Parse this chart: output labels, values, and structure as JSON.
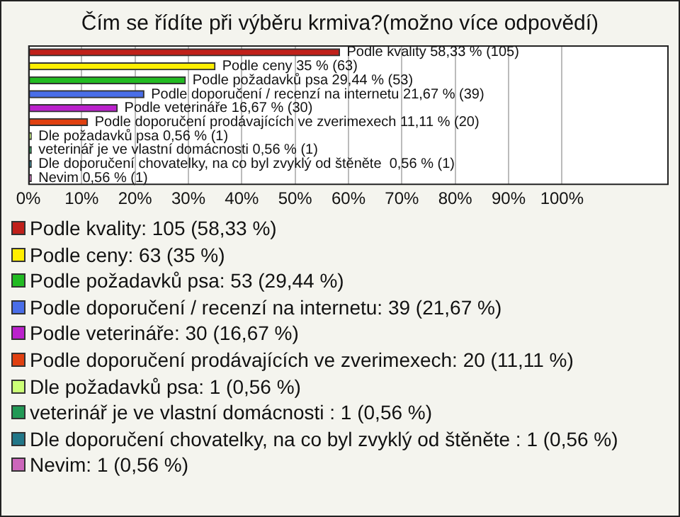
{
  "chart_data": {
    "type": "bar",
    "orientation": "horizontal",
    "title": "Čím se řídíte při výběru krmiva?(možno více odpovědí)",
    "categories": [
      "Podle kvality",
      "Podle ceny",
      "Podle požadavků psa",
      "Podle doporučení / recenzí na internetu",
      "Podle veterináře",
      "Podle doporučení prodávajících ve zverimexech",
      "Dle požadavků psa",
      "veterinář je ve vlastní domácnosti",
      "Dle doporučení chovatelky, na co byl zvyklý od štěněte ",
      "Nevim"
    ],
    "values": [
      58.33,
      35,
      29.44,
      21.67,
      16.67,
      11.11,
      0.56,
      0.56,
      0.56,
      0.56
    ],
    "value_labels": [
      "58,33 % (105)",
      "35 % (63)",
      "29,44 % (53)",
      "21,67 % (39)",
      "16,67 % (30)",
      "11,11 % (20)",
      "0,56 % (1)",
      "0,56 % (1)",
      "0,56 % (1)",
      "0,56 % (1)"
    ],
    "colors": [
      "#c0201a",
      "#ffee00",
      "#22bb22",
      "#4a6ee8",
      "#bb22cc",
      "#e04010",
      "#ccff77",
      "#229955",
      "#227788",
      "#cc66bb"
    ],
    "xlim": [
      0,
      120
    ],
    "xticks": [
      {
        "value": 0,
        "label": "0%"
      },
      {
        "value": 10,
        "label": "10%"
      },
      {
        "value": 20,
        "label": "20%"
      },
      {
        "value": 30,
        "label": "30%"
      },
      {
        "value": 40,
        "label": "40%"
      },
      {
        "value": 50,
        "label": "50%"
      },
      {
        "value": 60,
        "label": "60%"
      },
      {
        "value": 70,
        "label": "70%"
      },
      {
        "value": 80,
        "label": "80%"
      },
      {
        "value": 90,
        "label": "90%"
      },
      {
        "value": 100,
        "label": "100%"
      }
    ],
    "grid": "x",
    "tick_labels": "x",
    "annotations": [
      "Podle kvality: 105 (58,33 %)",
      "Podle ceny: 63 (35 %)",
      "Podle požadavků psa: 53 (29,44 %)",
      "Podle doporučení / recenzí na internetu: 39 (21,67 %)",
      "Podle veterináře: 30 (16,67 %)",
      "Podle doporučení prodávajících ve zverimexech: 20 (11,11 %)",
      "Dle požadavků psa: 1 (0,56 %)",
      "veterinář je ve vlastní domácnosti : 1 (0,56 %)",
      "Dle doporučení chovatelky, na co byl zvyklý od štěněte : 1 (0,56 %)",
      "Nevim: 1 (0,56 %)"
    ]
  }
}
